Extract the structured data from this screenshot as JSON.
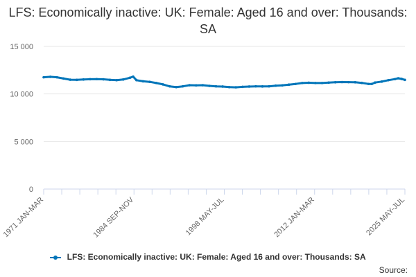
{
  "chart_data": {
    "type": "line",
    "title": "LFS: Economically inactive: UK: Female: Aged 16 and over: Thousands: SA",
    "x_tick_labels": [
      "1971 JAN-MAR",
      "1984 SEP-NOV",
      "1998 MAY-JUL",
      "2012 JAN-MAR",
      "2025 MAY-JUL"
    ],
    "y_tick_labels": [
      "0",
      "5 000",
      "10 000",
      "15 000"
    ],
    "y_ticks": [
      0,
      5000,
      10000,
      15000
    ],
    "ylim": [
      0,
      15000
    ],
    "xlim": [
      1971.0,
      2025.5
    ],
    "grid": true,
    "legend_position": "bottom",
    "color": "#0075b9",
    "series": [
      {
        "name": "LFS: Economically inactive: UK: Female: Aged 16 and over: Thousands: SA",
        "x": [
          1971.0,
          1972.0,
          1973.0,
          1974.0,
          1975.0,
          1976.0,
          1977.0,
          1978.0,
          1979.0,
          1980.0,
          1981.0,
          1982.0,
          1983.0,
          1984.0,
          1984.5,
          1985.0,
          1986.0,
          1987.0,
          1988.0,
          1989.0,
          1990.0,
          1991.0,
          1992.0,
          1993.0,
          1994.0,
          1995.0,
          1996.0,
          1997.0,
          1998.0,
          1999.0,
          2000.0,
          2001.0,
          2002.0,
          2003.0,
          2004.0,
          2005.0,
          2006.0,
          2007.0,
          2008.0,
          2009.0,
          2010.0,
          2011.0,
          2012.0,
          2013.0,
          2014.0,
          2015.0,
          2016.0,
          2017.0,
          2018.0,
          2019.0,
          2020.0,
          2020.5,
          2021.0,
          2022.0,
          2023.0,
          2024.0,
          2024.5,
          2025.0,
          2025.5
        ],
        "values": [
          11750,
          11800,
          11750,
          11620,
          11500,
          11480,
          11520,
          11550,
          11560,
          11540,
          11480,
          11450,
          11520,
          11700,
          11820,
          11450,
          11330,
          11270,
          11150,
          11000,
          10800,
          10720,
          10800,
          10920,
          10900,
          10920,
          10850,
          10800,
          10780,
          10720,
          10700,
          10750,
          10780,
          10800,
          10790,
          10800,
          10870,
          10900,
          10980,
          11050,
          11150,
          11180,
          11150,
          11150,
          11190,
          11230,
          11250,
          11240,
          11230,
          11160,
          11050,
          11050,
          11200,
          11300,
          11450,
          11560,
          11650,
          11580,
          11480
        ]
      }
    ]
  },
  "source_label": "Source:"
}
